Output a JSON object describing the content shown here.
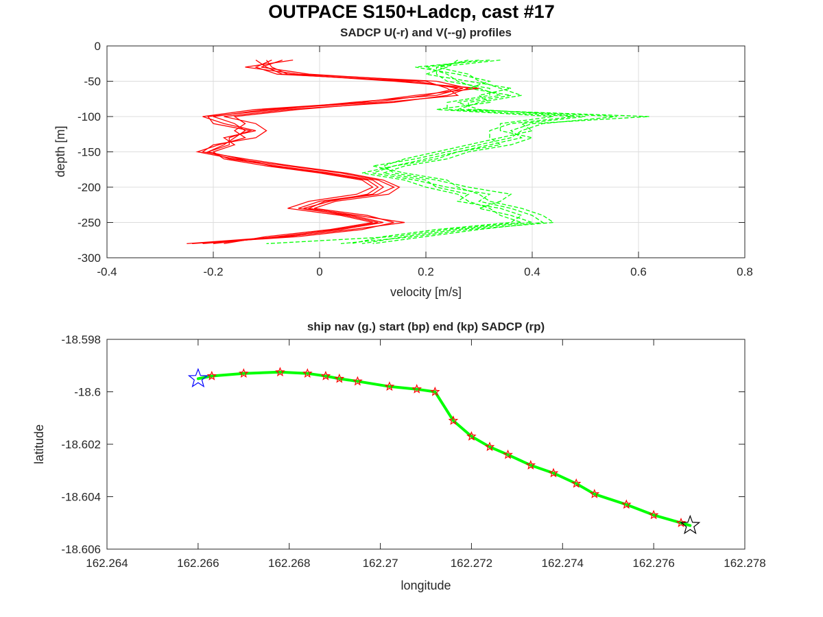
{
  "figure": {
    "title": "OUTPACE S150+Ladcp, cast #17"
  },
  "colors": {
    "u_series": "#ff0000",
    "v_series": "#00ff00",
    "nav_track": "#00ff00",
    "sadcp_points": "#ff0000",
    "start_star": "#0000ff",
    "end_star": "#000000",
    "grid": "#dcdcdc"
  },
  "chart_data": [
    {
      "type": "line",
      "title": "SADCP U(-r) and V(--g) profiles",
      "xlabel": "velocity [m/s]",
      "ylabel": "depth [m]",
      "xlim": [
        -0.4,
        0.8
      ],
      "ylim": [
        -300,
        0
      ],
      "xticks": [
        -0.4,
        -0.2,
        0,
        0.2,
        0.4,
        0.6,
        0.8
      ],
      "xtick_labels": [
        "-0.4",
        "-0.2",
        "0",
        "0.2",
        "0.4",
        "0.6",
        "0.8"
      ],
      "yticks": [
        0,
        -50,
        -100,
        -150,
        -200,
        -250,
        -300
      ],
      "ytick_labels": [
        "0",
        "-50",
        "-100",
        "-150",
        "-200",
        "-250",
        "-300"
      ],
      "grid": true,
      "depth": [
        -20,
        -30,
        -40,
        -50,
        -60,
        -70,
        -80,
        -90,
        -100,
        -110,
        -120,
        -130,
        -140,
        -150,
        -160,
        -170,
        -180,
        -190,
        -200,
        -210,
        -220,
        -230,
        -240,
        -250,
        -260,
        -270,
        -280
      ],
      "series": [
        {
          "component": "U",
          "style": "solid",
          "values": [
            -0.09,
            -0.12,
            -0.08,
            0.18,
            0.26,
            0.2,
            0.1,
            -0.1,
            -0.2,
            -0.16,
            -0.14,
            -0.16,
            -0.18,
            -0.21,
            -0.17,
            -0.08,
            0.02,
            0.1,
            0.12,
            0.1,
            0.0,
            -0.04,
            0.06,
            0.12,
            0.04,
            -0.08,
            -0.2
          ]
        },
        {
          "component": "U",
          "style": "solid",
          "values": [
            -0.05,
            -0.14,
            -0.04,
            0.22,
            0.28,
            0.24,
            0.14,
            -0.06,
            -0.18,
            -0.12,
            -0.1,
            -0.12,
            -0.2,
            -0.22,
            -0.14,
            -0.05,
            0.05,
            0.12,
            0.15,
            0.13,
            0.03,
            -0.01,
            0.09,
            0.14,
            0.08,
            -0.04,
            -0.24
          ]
        },
        {
          "component": "U",
          "style": "solid",
          "values": [
            -0.1,
            -0.09,
            -0.06,
            0.14,
            0.3,
            0.18,
            0.08,
            -0.12,
            -0.22,
            -0.18,
            -0.12,
            -0.18,
            -0.16,
            -0.2,
            -0.18,
            -0.1,
            0.0,
            0.08,
            0.1,
            0.07,
            -0.02,
            -0.06,
            0.04,
            0.1,
            0.02,
            -0.1,
            -0.18
          ]
        },
        {
          "component": "U",
          "style": "solid",
          "values": [
            -0.07,
            -0.11,
            -0.02,
            0.2,
            0.24,
            0.26,
            0.12,
            -0.04,
            -0.16,
            -0.14,
            -0.16,
            -0.14,
            -0.19,
            -0.23,
            -0.16,
            -0.06,
            0.04,
            0.11,
            0.14,
            0.11,
            0.01,
            -0.02,
            0.07,
            0.16,
            0.06,
            -0.06,
            -0.22
          ]
        },
        {
          "component": "U",
          "style": "solid",
          "values": [
            -0.12,
            -0.1,
            -0.07,
            0.16,
            0.27,
            0.22,
            0.06,
            -0.08,
            -0.21,
            -0.2,
            -0.13,
            -0.17,
            -0.17,
            -0.21,
            -0.15,
            -0.09,
            0.01,
            0.09,
            0.11,
            0.09,
            0.02,
            -0.03,
            0.05,
            0.11,
            0.03,
            -0.07,
            -0.25
          ]
        },
        {
          "component": "V",
          "style": "dashed",
          "values": [
            0.34,
            0.22,
            0.28,
            0.3,
            0.34,
            0.38,
            0.3,
            0.26,
            0.62,
            0.4,
            0.36,
            0.38,
            0.32,
            0.26,
            0.2,
            0.14,
            0.1,
            0.18,
            0.24,
            0.32,
            0.3,
            0.36,
            0.4,
            0.42,
            0.3,
            0.2,
            0.1
          ]
        },
        {
          "component": "V",
          "style": "dashed",
          "values": [
            0.3,
            0.2,
            0.24,
            0.26,
            0.3,
            0.34,
            0.26,
            0.3,
            0.5,
            0.38,
            0.4,
            0.34,
            0.28,
            0.22,
            0.16,
            0.12,
            0.14,
            0.22,
            0.28,
            0.36,
            0.34,
            0.3,
            0.36,
            0.4,
            0.26,
            0.16,
            0.08
          ]
        },
        {
          "component": "V",
          "style": "dashed",
          "values": [
            0.26,
            0.24,
            0.2,
            0.28,
            0.36,
            0.3,
            0.32,
            0.22,
            0.44,
            0.34,
            0.34,
            0.4,
            0.36,
            0.28,
            0.24,
            0.16,
            0.12,
            0.2,
            0.22,
            0.28,
            0.26,
            0.34,
            0.38,
            0.36,
            0.22,
            0.12,
            0.06
          ]
        },
        {
          "component": "V",
          "style": "dashed",
          "values": [
            0.32,
            0.18,
            0.26,
            0.32,
            0.28,
            0.36,
            0.28,
            0.28,
            0.56,
            0.42,
            0.38,
            0.36,
            0.3,
            0.24,
            0.18,
            0.1,
            0.16,
            0.24,
            0.26,
            0.3,
            0.32,
            0.38,
            0.42,
            0.44,
            0.28,
            0.18,
            0.04
          ]
        },
        {
          "component": "V",
          "style": "dashed",
          "values": [
            0.28,
            0.22,
            0.22,
            0.24,
            0.32,
            0.32,
            0.24,
            0.24,
            0.48,
            0.36,
            0.32,
            0.32,
            0.34,
            0.26,
            0.22,
            0.14,
            0.08,
            0.16,
            0.2,
            0.26,
            0.28,
            0.32,
            0.34,
            0.38,
            0.24,
            0.14,
            -0.1
          ]
        }
      ]
    },
    {
      "type": "scatter",
      "title": "ship nav (g.) start (bp) end (kp) SADCP (rp)",
      "xlabel": "longitude",
      "ylabel": "latitude",
      "xlim": [
        162.264,
        162.278
      ],
      "ylim": [
        -18.606,
        -18.598
      ],
      "xticks": [
        162.264,
        162.266,
        162.268,
        162.27,
        162.272,
        162.274,
        162.276,
        162.278
      ],
      "xtick_labels": [
        "162.264",
        "162.266",
        "162.268",
        "162.27",
        "162.272",
        "162.274",
        "162.276",
        "162.278"
      ],
      "yticks": [
        -18.598,
        -18.6,
        -18.602,
        -18.604,
        -18.606
      ],
      "ytick_labels": [
        "-18.598",
        "-18.6",
        "-18.602",
        "-18.604",
        "-18.606"
      ],
      "grid": false,
      "nav_track": {
        "lon": [
          162.266,
          162.2663,
          162.267,
          162.2678,
          162.2684,
          162.2688,
          162.2691,
          162.2695,
          162.2702,
          162.2708,
          162.2712,
          162.2716,
          162.272,
          162.2724,
          162.2728,
          162.2733,
          162.2738,
          162.2743,
          162.2747,
          162.2754,
          162.276,
          162.2766,
          162.2768
        ],
        "lat": [
          -18.5995,
          -18.5994,
          -18.5993,
          -18.59925,
          -18.5993,
          -18.5994,
          -18.5995,
          -18.5996,
          -18.5998,
          -18.5999,
          -18.6,
          -18.6011,
          -18.6017,
          -18.6021,
          -18.6024,
          -18.6028,
          -18.6031,
          -18.6035,
          -18.6039,
          -18.6043,
          -18.6047,
          -18.605,
          -18.6051
        ]
      },
      "sadcp_points": {
        "lon": [
          162.2663,
          162.267,
          162.2678,
          162.2684,
          162.2688,
          162.2691,
          162.2695,
          162.2702,
          162.2708,
          162.2712,
          162.2716,
          162.272,
          162.2724,
          162.2728,
          162.2733,
          162.2738,
          162.2743,
          162.2747,
          162.2754,
          162.276,
          162.2766
        ],
        "lat": [
          -18.5994,
          -18.5993,
          -18.59925,
          -18.5993,
          -18.5994,
          -18.5995,
          -18.5996,
          -18.5998,
          -18.5999,
          -18.6,
          -18.6011,
          -18.6017,
          -18.6021,
          -18.6024,
          -18.6028,
          -18.6031,
          -18.6035,
          -18.6039,
          -18.6043,
          -18.6047,
          -18.605
        ]
      },
      "start": {
        "lon": 162.266,
        "lat": -18.5995
      },
      "end": {
        "lon": 162.2768,
        "lat": -18.6051
      }
    }
  ]
}
